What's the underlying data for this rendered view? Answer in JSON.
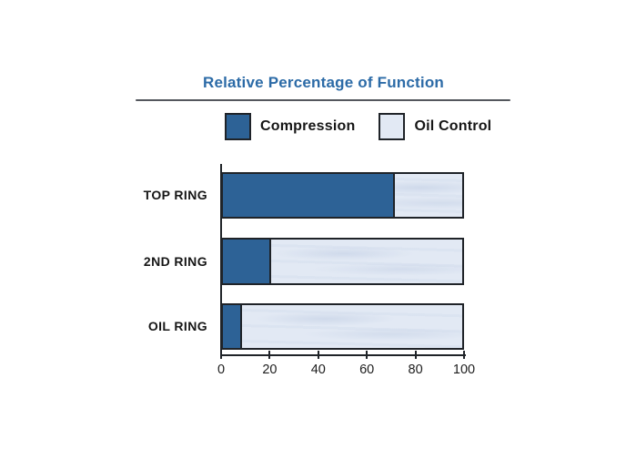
{
  "page": {
    "background": "#ffffff"
  },
  "header": {
    "title": "Relative Percentage of Function",
    "title_color": "#2c6ba7",
    "underline_color": "#54575d"
  },
  "legend": {
    "items": [
      {
        "label": "Compression",
        "color": "#2d6296"
      },
      {
        "label": "Oil Control",
        "color": "#e2e9f4"
      }
    ]
  },
  "chart_data": {
    "type": "bar",
    "orientation": "horizontal",
    "stacked": true,
    "title": "Relative Percentage of Function",
    "categories": [
      "TOP RING",
      "2ND RING",
      "OIL RING"
    ],
    "series": [
      {
        "name": "Compression",
        "color": "#2d6296",
        "values": [
          72,
          20,
          8
        ]
      },
      {
        "name": "Oil Control",
        "color": "#e2e9f4",
        "values": [
          28,
          80,
          92
        ]
      }
    ],
    "xlabel": "",
    "ylabel": "",
    "xlim": [
      0,
      100
    ],
    "x_ticks": [
      "0",
      "20",
      "40",
      "60",
      "80",
      "100"
    ],
    "grid": false,
    "legend_position": "top",
    "axis_color": "#1f2328"
  }
}
